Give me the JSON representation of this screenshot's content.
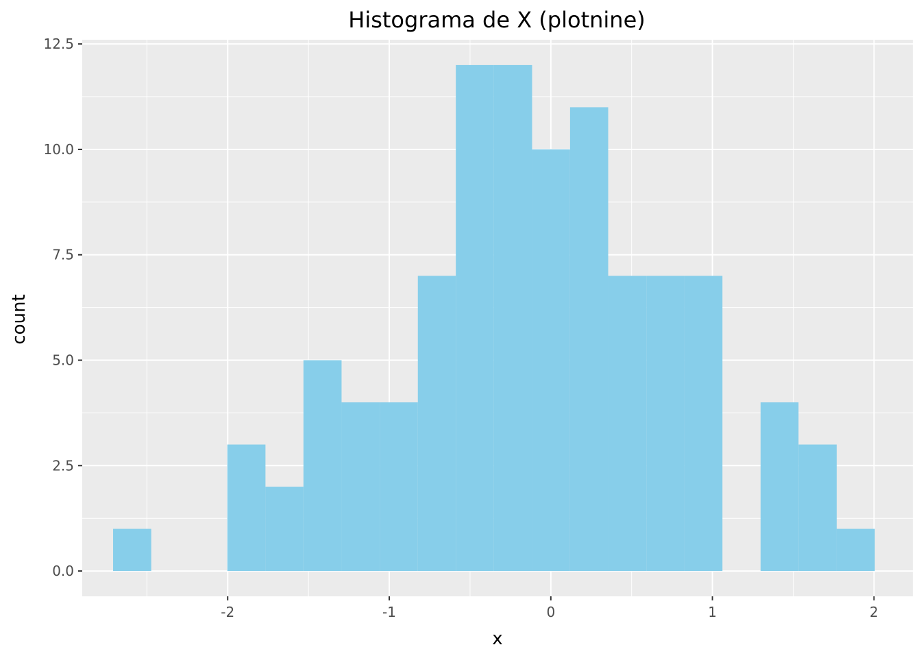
{
  "chart_data": {
    "type": "bar",
    "title": "Histograma de X (plotnine)",
    "xlabel": "x",
    "ylabel": "count",
    "bin_width": 0.2357,
    "bins": [
      {
        "x0": -2.709,
        "x1": -2.473,
        "count": 1
      },
      {
        "x0": -2.473,
        "x1": -2.238,
        "count": 0
      },
      {
        "x0": -2.238,
        "x1": -2.002,
        "count": 0
      },
      {
        "x0": -2.002,
        "x1": -1.766,
        "count": 3
      },
      {
        "x0": -1.766,
        "x1": -1.531,
        "count": 2
      },
      {
        "x0": -1.531,
        "x1": -1.295,
        "count": 5
      },
      {
        "x0": -1.295,
        "x1": -1.059,
        "count": 4
      },
      {
        "x0": -1.059,
        "x1": -0.823,
        "count": 4
      },
      {
        "x0": -0.823,
        "x1": -0.588,
        "count": 7
      },
      {
        "x0": -0.588,
        "x1": -0.352,
        "count": 12
      },
      {
        "x0": -0.352,
        "x1": -0.116,
        "count": 12
      },
      {
        "x0": -0.116,
        "x1": 0.119,
        "count": 10
      },
      {
        "x0": 0.119,
        "x1": 0.355,
        "count": 11
      },
      {
        "x0": 0.355,
        "x1": 0.591,
        "count": 7
      },
      {
        "x0": 0.591,
        "x1": 0.826,
        "count": 7
      },
      {
        "x0": 0.826,
        "x1": 1.062,
        "count": 7
      },
      {
        "x0": 1.062,
        "x1": 1.298,
        "count": 0
      },
      {
        "x0": 1.298,
        "x1": 1.533,
        "count": 4
      },
      {
        "x0": 1.533,
        "x1": 1.769,
        "count": 3
      },
      {
        "x0": 1.769,
        "x1": 2.005,
        "count": 1
      }
    ],
    "xlim": [
      -2.9,
      2.24
    ],
    "ylim": [
      -0.6,
      12.6
    ],
    "x_ticks": [
      -2,
      -1,
      0,
      1,
      2
    ],
    "x_tick_labels": [
      "-2",
      "-1",
      "0",
      "1",
      "2"
    ],
    "y_ticks": [
      0,
      2.5,
      5,
      7.5,
      10,
      12.5
    ],
    "y_tick_labels": [
      "0.0",
      "2.5",
      "5.0",
      "7.5",
      "10.0",
      "12.5"
    ],
    "grid": true,
    "legend": "none",
    "colors": {
      "bar_fill": "#87ceea",
      "panel_background": "#ebebeb",
      "grid_line": "#ffffff",
      "tick_text": "#4d4d4d",
      "tick_mark": "#333333"
    }
  }
}
